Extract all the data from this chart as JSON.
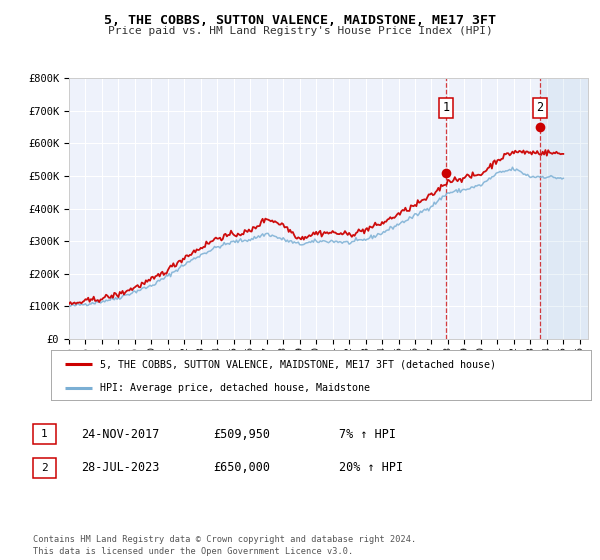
{
  "title": "5, THE COBBS, SUTTON VALENCE, MAIDSTONE, ME17 3FT",
  "subtitle": "Price paid vs. HM Land Registry's House Price Index (HPI)",
  "legend_label1": "5, THE COBBS, SUTTON VALENCE, MAIDSTONE, ME17 3FT (detached house)",
  "legend_label2": "HPI: Average price, detached house, Maidstone",
  "annotation1_label": "1",
  "annotation1_date": "24-NOV-2017",
  "annotation1_price": "£509,950",
  "annotation1_hpi": "7% ↑ HPI",
  "annotation2_label": "2",
  "annotation2_date": "28-JUL-2023",
  "annotation2_price": "£650,000",
  "annotation2_hpi": "20% ↑ HPI",
  "footer": "Contains HM Land Registry data © Crown copyright and database right 2024.\nThis data is licensed under the Open Government Licence v3.0.",
  "line1_color": "#cc0000",
  "line2_color": "#7bafd4",
  "background_color": "#eef2fb",
  "grid_color": "#ffffff",
  "vline_color": "#cc0000",
  "ylim": [
    0,
    800000
  ],
  "xlim_start": 1995.0,
  "xlim_end": 2026.5,
  "marker1_x": 2017.9,
  "marker1_y": 509950,
  "marker2_x": 2023.57,
  "marker2_y": 650000,
  "vline1_x": 2017.9,
  "vline2_x": 2023.57,
  "hpi_years": [
    1995,
    1996,
    1997,
    1998,
    1999,
    2000,
    2001,
    2002,
    2003,
    2004,
    2005,
    2006,
    2007,
    2008,
    2009,
    2010,
    2011,
    2012,
    2013,
    2014,
    2015,
    2016,
    2017,
    2018,
    2019,
    2020,
    2021,
    2022,
    2023,
    2024,
    2025
  ],
  "hpi_vals": [
    100000,
    107000,
    115000,
    126000,
    145000,
    163000,
    193000,
    228000,
    258000,
    282000,
    298000,
    305000,
    323000,
    305000,
    290000,
    299000,
    300000,
    295000,
    305000,
    325000,
    352000,
    378000,
    408000,
    448000,
    458000,
    472000,
    508000,
    522000,
    498000,
    498000,
    493000
  ],
  "prop_years": [
    1995,
    1996,
    1997,
    1998,
    1999,
    2000,
    2001,
    2002,
    2003,
    2004,
    2005,
    2006,
    2007,
    2008,
    2009,
    2010,
    2011,
    2012,
    2013,
    2014,
    2015,
    2016,
    2017,
    2018,
    2019,
    2020,
    2021,
    2022,
    2023,
    2024,
    2025
  ],
  "prop_vals": [
    105000,
    115000,
    124000,
    136000,
    158000,
    180000,
    212000,
    250000,
    280000,
    310000,
    320000,
    330000,
    370000,
    350000,
    308000,
    325000,
    326000,
    320000,
    335000,
    355000,
    383000,
    410000,
    440000,
    485000,
    495000,
    505000,
    550000,
    575000,
    572000,
    572000,
    568000
  ]
}
